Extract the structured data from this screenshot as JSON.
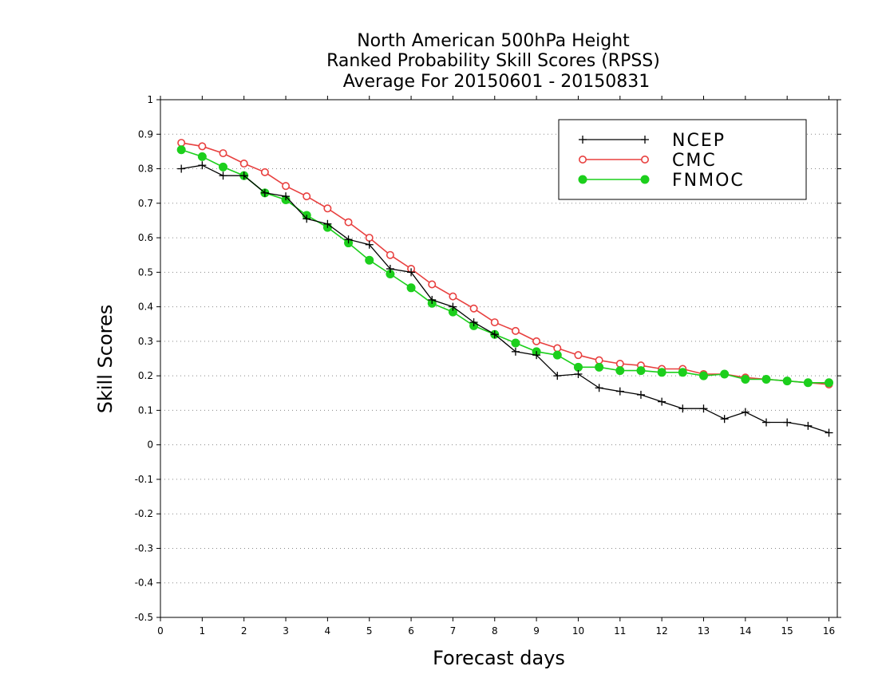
{
  "chart_data": {
    "type": "line",
    "title": [
      "North American 500hPa Height",
      "Ranked Probability Skill Scores (RPSS)",
      "Average For 20150601 - 20150831"
    ],
    "xlabel": "Forecast days",
    "ylabel": "Skill Scores",
    "xlim": [
      0,
      16.2
    ],
    "ylim": [
      -0.5,
      1
    ],
    "xticks": [
      0,
      1,
      2,
      3,
      4,
      5,
      6,
      7,
      8,
      9,
      10,
      11,
      12,
      13,
      14,
      15,
      16
    ],
    "yticks": [
      -0.5,
      -0.4,
      -0.3,
      -0.2,
      -0.1,
      0,
      0.1,
      0.2,
      0.3,
      0.4,
      0.5,
      0.6,
      0.7,
      0.8,
      0.9,
      1
    ],
    "grid": "horizontal dotted",
    "legend_position": "top-right",
    "x": [
      0.5,
      1.0,
      1.5,
      2.0,
      2.5,
      3.0,
      3.5,
      4.0,
      4.5,
      5.0,
      5.5,
      6.0,
      6.5,
      7.0,
      7.5,
      8.0,
      8.5,
      9.0,
      9.5,
      10.0,
      10.5,
      11.0,
      11.5,
      12.0,
      12.5,
      13.0,
      13.5,
      14.0,
      14.5,
      15.0,
      15.5,
      16.0
    ],
    "series": [
      {
        "name": "NCEP",
        "color": "#000000",
        "marker": "plus",
        "values": [
          0.8,
          0.81,
          0.78,
          0.78,
          0.73,
          0.72,
          0.655,
          0.64,
          0.595,
          0.58,
          0.51,
          0.5,
          0.42,
          0.4,
          0.355,
          0.32,
          0.27,
          0.26,
          0.2,
          0.205,
          0.165,
          0.155,
          0.145,
          0.125,
          0.105,
          0.105,
          0.075,
          0.095,
          0.065,
          0.065,
          0.055,
          0.035
        ]
      },
      {
        "name": "CMC",
        "color": "#e8403f",
        "marker": "open-circle",
        "values": [
          0.875,
          0.865,
          0.845,
          0.815,
          0.79,
          0.75,
          0.72,
          0.685,
          0.645,
          0.6,
          0.55,
          0.51,
          0.465,
          0.43,
          0.395,
          0.355,
          0.33,
          0.3,
          0.28,
          0.26,
          0.245,
          0.235,
          0.23,
          0.22,
          0.22,
          0.205,
          0.205,
          0.195,
          0.19,
          0.185,
          0.18,
          0.175
        ]
      },
      {
        "name": "FNMOC",
        "color": "#1ccf1c",
        "marker": "filled-circle",
        "values": [
          0.855,
          0.835,
          0.805,
          0.78,
          0.73,
          0.71,
          0.665,
          0.63,
          0.585,
          0.535,
          0.495,
          0.455,
          0.41,
          0.385,
          0.345,
          0.32,
          0.295,
          0.27,
          0.26,
          0.225,
          0.225,
          0.215,
          0.215,
          0.21,
          0.21,
          0.2,
          0.205,
          0.19,
          0.19,
          0.185,
          0.18,
          0.18
        ]
      }
    ]
  }
}
